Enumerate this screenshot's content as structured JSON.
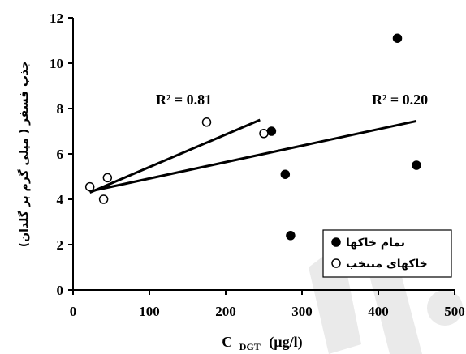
{
  "chart_data": {
    "type": "scatter",
    "xlabel": "C",
    "xlabel_sub": "DGT",
    "xlabel_unit": "(µg/l)",
    "ylabel": "جذب فسفر ( میلی گرم بر گلدان)",
    "xlim": [
      0,
      500
    ],
    "ylim": [
      0,
      12
    ],
    "xticks": [
      0,
      100,
      200,
      300,
      400,
      500
    ],
    "yticks": [
      0,
      2,
      4,
      6,
      8,
      10,
      12
    ],
    "grid": false,
    "legend_position": "bottom-right",
    "series": [
      {
        "name": "تمام خاکها",
        "marker": "filled",
        "color": "#000000",
        "points": [
          [
            260,
            7.0
          ],
          [
            278,
            5.1
          ],
          [
            285,
            2.4
          ],
          [
            425,
            11.1
          ],
          [
            450,
            5.5
          ]
        ],
        "fit": {
          "r2_label": "R² = 0.20",
          "x": [
            22,
            450
          ],
          "y": [
            4.35,
            7.45
          ]
        }
      },
      {
        "name": "خاکهای منتخب",
        "marker": "open",
        "color": "#000000",
        "points": [
          [
            22,
            4.55
          ],
          [
            40,
            4.0
          ],
          [
            45,
            4.95
          ],
          [
            175,
            7.4
          ],
          [
            250,
            6.9
          ]
        ],
        "fit": {
          "r2_label": "R² = 0.81",
          "x": [
            22,
            245
          ],
          "y": [
            4.3,
            7.5
          ]
        }
      }
    ],
    "annotations": [
      {
        "text": "R² = 0.81",
        "series": 1
      },
      {
        "text": "R² = 0.20",
        "series": 0
      }
    ]
  }
}
